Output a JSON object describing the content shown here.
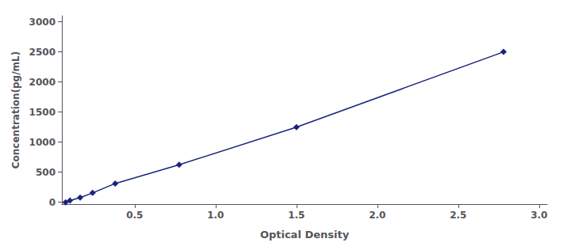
{
  "chart_data": {
    "type": "line",
    "x": [
      0.073,
      0.1,
      0.163,
      0.24,
      0.38,
      0.775,
      1.5,
      2.78
    ],
    "values": [
      0,
      30,
      78,
      156,
      313,
      625,
      1250,
      2500
    ],
    "color": "#1a237e",
    "marker": "diamond",
    "line_style": "solid",
    "xlabel": "Optical Density",
    "ylabel": "Concentration(pg/mL)",
    "xlim": [
      0.05,
      3.05
    ],
    "ylim": [
      -30,
      3100
    ],
    "xticks": [
      0.5,
      {
        "value": 1,
        "label": "1.0"
      },
      1.5,
      {
        "value": 2,
        "label": "2.0"
      },
      2.5,
      {
        "value": 3,
        "label": "3.0"
      }
    ],
    "yticks": [
      0,
      500,
      1000,
      1500,
      2000,
      2500,
      3000
    ],
    "grid": false
  }
}
